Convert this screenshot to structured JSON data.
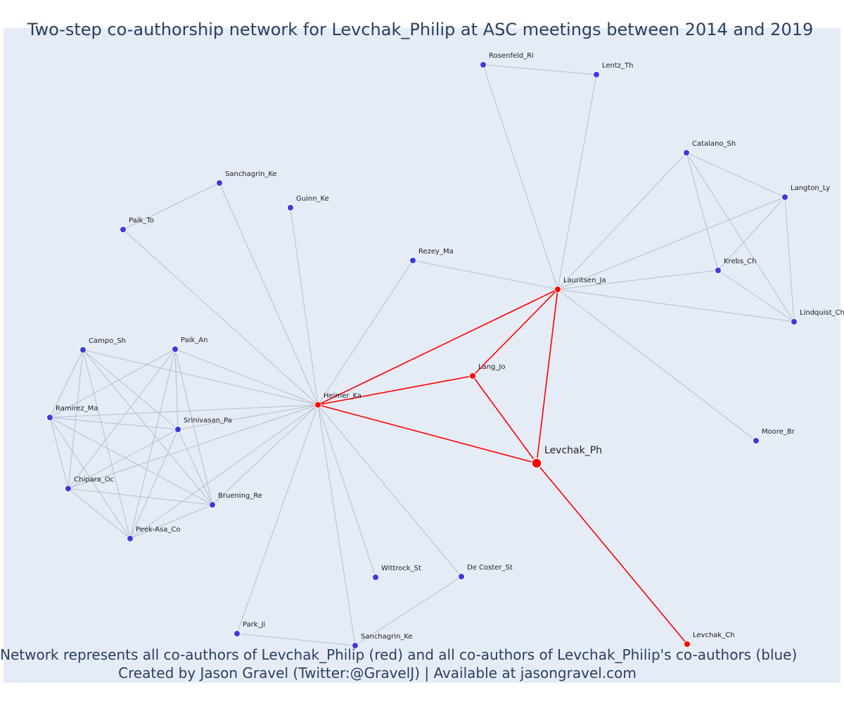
{
  "title": "Two-step co-authorship network for Levchak_Philip at ASC meetings between 2014 and 2019",
  "footer": {
    "line1": "Network represents all co-authors of Levchak_Philip (red) and all co-authors of Levchak_Philip's co-authors (blue)",
    "line2": "Created by Jason Gravel (Twitter:@GravelJ) | Available at jasongravel.com"
  },
  "colors": {
    "focal": "#ff0000",
    "coauthor": "#ff0000",
    "second_step": "#3b3be0",
    "edge_gray": "#b8bccc",
    "edge_red": "#ff0000",
    "background": "#e5ecf6",
    "text": "#2a3f5f"
  },
  "chart_data": {
    "type": "network",
    "nodes": [
      {
        "id": "levchak_ph",
        "label": "Levchak_Ph",
        "group": "focal"
      },
      {
        "id": "heimer_ka",
        "label": "Heimer_Ka",
        "group": "coauthor"
      },
      {
        "id": "lang_jo",
        "label": "Lang_Jo",
        "group": "coauthor"
      },
      {
        "id": "lauritsen_ja",
        "label": "Lauritsen_Ja",
        "group": "coauthor"
      },
      {
        "id": "levchak_ch",
        "label": "Levchak_Ch",
        "group": "coauthor"
      },
      {
        "id": "rosenfeld_ri",
        "label": "Rosenfeld_Ri",
        "group": "second"
      },
      {
        "id": "lentz_th",
        "label": "Lentz_Th",
        "group": "second"
      },
      {
        "id": "catalano_sh",
        "label": "Catalano_Sh",
        "group": "second"
      },
      {
        "id": "langton_ly",
        "label": "Langton_Ly",
        "group": "second"
      },
      {
        "id": "krebs_ch",
        "label": "Krebs_Ch",
        "group": "second"
      },
      {
        "id": "lindquist_ch",
        "label": "Lindquist_Ch",
        "group": "second"
      },
      {
        "id": "moore_br",
        "label": "Moore_Br",
        "group": "second"
      },
      {
        "id": "rezey_ma",
        "label": "Rezey_Ma",
        "group": "second"
      },
      {
        "id": "sanchagrin_ke_top",
        "label": "Sanchagrin_Ke",
        "group": "second"
      },
      {
        "id": "guinn_ke",
        "label": "Guinn_Ke",
        "group": "second"
      },
      {
        "id": "paik_to",
        "label": "Paik_To",
        "group": "second"
      },
      {
        "id": "campo_sh",
        "label": "Campo_Sh",
        "group": "second"
      },
      {
        "id": "paik_an",
        "label": "Paik_An",
        "group": "second"
      },
      {
        "id": "ramirez_ma",
        "label": "Ramirez_Ma",
        "group": "second"
      },
      {
        "id": "srinivasan_pa",
        "label": "Srinivasan_Pa",
        "group": "second"
      },
      {
        "id": "chipara_oc",
        "label": "Chipara_Oc",
        "group": "second"
      },
      {
        "id": "bruening_re",
        "label": "Bruening_Re",
        "group": "second"
      },
      {
        "id": "peek_asa_co",
        "label": "Peek-Asa_Co",
        "group": "second"
      },
      {
        "id": "wittrock_st",
        "label": "Wittrock_St",
        "group": "second"
      },
      {
        "id": "de_coster_st",
        "label": "De Coster_St",
        "group": "second"
      },
      {
        "id": "park_ji",
        "label": "Park_Ji",
        "group": "second"
      },
      {
        "id": "sanchagrin_ke_bottom",
        "label": "Sanchagrin_Ke",
        "group": "second"
      }
    ],
    "edges": [
      [
        "levchak_ph",
        "heimer_ka"
      ],
      [
        "levchak_ph",
        "lang_jo"
      ],
      [
        "levchak_ph",
        "lauritsen_ja"
      ],
      [
        "levchak_ph",
        "levchak_ch"
      ],
      [
        "heimer_ka",
        "lang_jo"
      ],
      [
        "heimer_ka",
        "lauritsen_ja"
      ],
      [
        "lang_jo",
        "lauritsen_ja"
      ],
      [
        "rosenfeld_ri",
        "lentz_th"
      ],
      [
        "rosenfeld_ri",
        "lauritsen_ja"
      ],
      [
        "lentz_th",
        "lauritsen_ja"
      ],
      [
        "catalano_sh",
        "lauritsen_ja"
      ],
      [
        "catalano_sh",
        "langton_ly"
      ],
      [
        "catalano_sh",
        "krebs_ch"
      ],
      [
        "catalano_sh",
        "lindquist_ch"
      ],
      [
        "langton_ly",
        "lauritsen_ja"
      ],
      [
        "langton_ly",
        "krebs_ch"
      ],
      [
        "langton_ly",
        "lindquist_ch"
      ],
      [
        "krebs_ch",
        "lauritsen_ja"
      ],
      [
        "krebs_ch",
        "lindquist_ch"
      ],
      [
        "lindquist_ch",
        "lauritsen_ja"
      ],
      [
        "lauritsen_ja",
        "moore_br"
      ],
      [
        "rezey_ma",
        "lauritsen_ja"
      ],
      [
        "rezey_ma",
        "heimer_ka"
      ],
      [
        "sanchagrin_ke_top",
        "paik_to"
      ],
      [
        "sanchagrin_ke_top",
        "heimer_ka"
      ],
      [
        "guinn_ke",
        "heimer_ka"
      ],
      [
        "paik_to",
        "heimer_ka"
      ],
      [
        "campo_sh",
        "heimer_ka"
      ],
      [
        "paik_an",
        "heimer_ka"
      ],
      [
        "ramirez_ma",
        "heimer_ka"
      ],
      [
        "srinivasan_pa",
        "heimer_ka"
      ],
      [
        "chipara_oc",
        "heimer_ka"
      ],
      [
        "bruening_re",
        "heimer_ka"
      ],
      [
        "peek_asa_co",
        "heimer_ka"
      ],
      [
        "wittrock_st",
        "heimer_ka"
      ],
      [
        "de_coster_st",
        "heimer_ka"
      ],
      [
        "park_ji",
        "heimer_ka"
      ],
      [
        "sanchagrin_ke_bottom",
        "heimer_ka"
      ],
      [
        "de_coster_st",
        "sanchagrin_ke_bottom"
      ],
      [
        "park_ji",
        "sanchagrin_ke_bottom"
      ],
      [
        "campo_sh",
        "ramirez_ma"
      ],
      [
        "campo_sh",
        "srinivasan_pa"
      ],
      [
        "campo_sh",
        "chipara_oc"
      ],
      [
        "campo_sh",
        "bruening_re"
      ],
      [
        "campo_sh",
        "peek_asa_co"
      ],
      [
        "paik_an",
        "ramirez_ma"
      ],
      [
        "paik_an",
        "srinivasan_pa"
      ],
      [
        "paik_an",
        "chipara_oc"
      ],
      [
        "paik_an",
        "bruening_re"
      ],
      [
        "paik_an",
        "peek_asa_co"
      ],
      [
        "ramirez_ma",
        "srinivasan_pa"
      ],
      [
        "ramirez_ma",
        "chipara_oc"
      ],
      [
        "ramirez_ma",
        "bruening_re"
      ],
      [
        "ramirez_ma",
        "peek_asa_co"
      ],
      [
        "srinivasan_pa",
        "chipara_oc"
      ],
      [
        "srinivasan_pa",
        "bruening_re"
      ],
      [
        "srinivasan_pa",
        "peek_asa_co"
      ],
      [
        "chipara_oc",
        "bruening_re"
      ],
      [
        "chipara_oc",
        "peek_asa_co"
      ],
      [
        "bruening_re",
        "peek_asa_co"
      ]
    ]
  }
}
